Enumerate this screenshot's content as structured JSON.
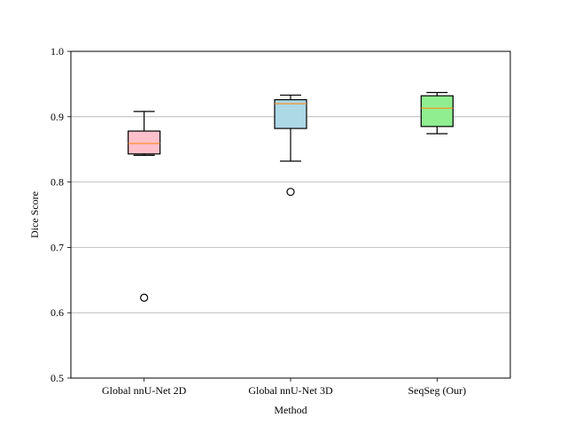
{
  "chart_data": {
    "type": "boxplot",
    "xlabel": "Method",
    "ylabel": "Dice Score",
    "ylim": [
      0.5,
      1.0
    ],
    "yticks": [
      0.5,
      0.6,
      0.7,
      0.8,
      0.9,
      1.0
    ],
    "ytick_labels": [
      "0.5",
      "0.6",
      "0.7",
      "0.8",
      "0.9",
      "1.0"
    ],
    "grid": "y",
    "categories": [
      "Global nnU-Net 2D",
      "Global nnU-Net 3D",
      "SeqSeg (Our)"
    ],
    "boxes": [
      {
        "whisker_low": 0.841,
        "q1": 0.843,
        "median": 0.859,
        "q3": 0.878,
        "whisker_high": 0.908,
        "outliers": [
          0.623
        ],
        "fill": "#ffc0cb"
      },
      {
        "whisker_low": 0.832,
        "q1": 0.882,
        "median": 0.92,
        "q3": 0.926,
        "whisker_high": 0.933,
        "outliers": [
          0.785
        ],
        "fill": "#add8e6"
      },
      {
        "whisker_low": 0.874,
        "q1": 0.885,
        "median": 0.913,
        "q3": 0.932,
        "whisker_high": 0.937,
        "outliers": [],
        "fill": "#90ee90"
      }
    ],
    "median_color": "#ff8c1a",
    "grid_color": "#b0b0b0"
  }
}
